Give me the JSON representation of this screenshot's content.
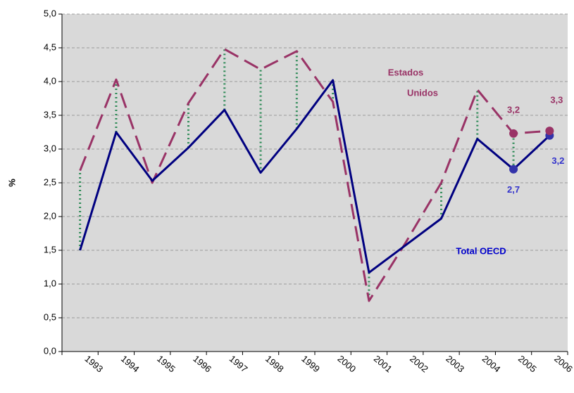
{
  "chart_data": {
    "type": "line",
    "y_label": "%",
    "categories": [
      "1993",
      "1994",
      "1995",
      "1996",
      "1997",
      "1998",
      "1999",
      "2000",
      "2001",
      "2002",
      "2003",
      "2004",
      "2005",
      "2006"
    ],
    "series": [
      {
        "name": "Total OECD",
        "color": "#000080",
        "values": [
          1.5,
          3.25,
          2.53,
          3.02,
          3.58,
          2.65,
          3.3,
          4.02,
          1.17,
          1.57,
          1.97,
          3.15,
          2.7,
          3.2
        ],
        "value_labels": [
          null,
          null,
          null,
          null,
          null,
          null,
          null,
          null,
          null,
          null,
          null,
          null,
          "2,7",
          "3,2"
        ]
      },
      {
        "name": "Estados Unidos",
        "color": "#993366",
        "values": [
          2.68,
          4.03,
          2.5,
          3.68,
          4.48,
          4.18,
          4.45,
          3.7,
          0.75,
          1.6,
          2.5,
          3.88,
          3.23,
          3.27
        ],
        "value_labels": [
          null,
          null,
          null,
          null,
          null,
          null,
          null,
          null,
          null,
          null,
          null,
          null,
          "3,2",
          "3,3"
        ]
      }
    ],
    "annotations": [
      "Estados",
      "Unidos",
      "Total OECD"
    ],
    "connector_color": "#2e8b57",
    "grid": true,
    "ylim": [
      0,
      5
    ],
    "yticks": [
      {
        "value": 0,
        "label": "0,0"
      },
      {
        "value": 0.5,
        "label": "0,5"
      },
      {
        "value": 1,
        "label": "1,0"
      },
      {
        "value": 1.5,
        "label": "1,5"
      },
      {
        "value": 2,
        "label": "2,0"
      },
      {
        "value": 2.5,
        "label": "2,5"
      },
      {
        "value": 3,
        "label": "3,0"
      },
      {
        "value": 3.5,
        "label": "3,5"
      },
      {
        "value": 4,
        "label": "4,0"
      },
      {
        "value": 4.5,
        "label": "4,5"
      },
      {
        "value": 5,
        "label": "5,0"
      }
    ]
  }
}
